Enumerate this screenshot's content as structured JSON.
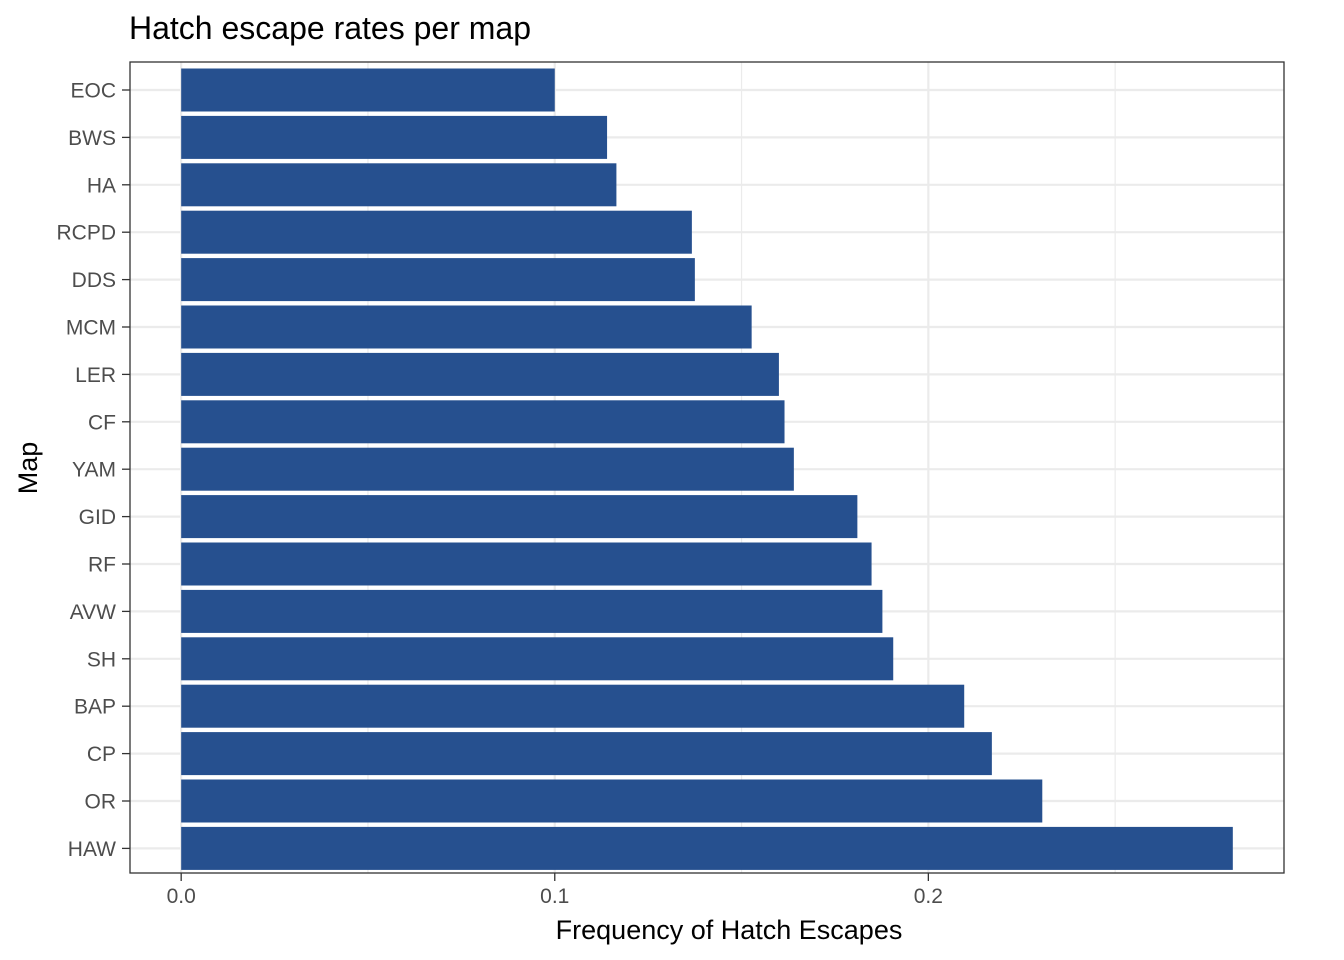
{
  "chart_data": {
    "type": "bar",
    "orientation": "horizontal",
    "title": "Hatch escape rates per map",
    "xlabel": "Frequency of Hatch Escapes",
    "ylabel": "Map",
    "categories": [
      "EOC",
      "BWS",
      "HA",
      "RCPD",
      "DDS",
      "MCM",
      "LER",
      "CF",
      "YAM",
      "GID",
      "RF",
      "AVW",
      "SH",
      "BAP",
      "CP",
      "OR",
      "HAW"
    ],
    "values": [
      0.1,
      0.114,
      0.1165,
      0.1367,
      0.1375,
      0.1527,
      0.16,
      0.1615,
      0.164,
      0.181,
      0.1848,
      0.1877,
      0.1906,
      0.2096,
      0.217,
      0.2305,
      0.2815
    ],
    "xlim": [
      -0.0137,
      0.2952
    ],
    "x_ticks": [
      0.0,
      0.1,
      0.2
    ],
    "x_tick_labels": [
      "0.0",
      "0.1",
      "0.2"
    ],
    "grid": true,
    "bar_color": "#26508f",
    "theme": "bw"
  }
}
